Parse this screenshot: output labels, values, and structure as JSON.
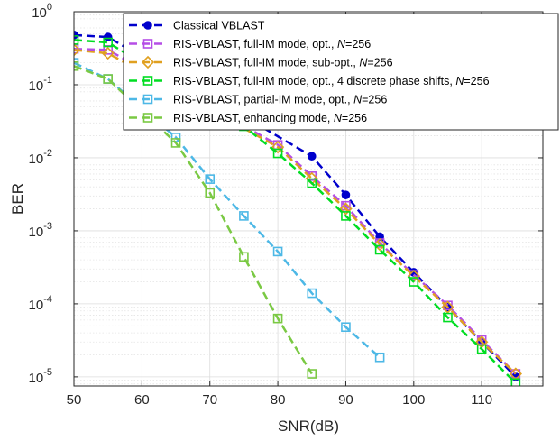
{
  "chart_data": {
    "type": "line",
    "xlabel": "SNR(dB)",
    "ylabel": "BER",
    "xlim": [
      50,
      119
    ],
    "ylim": [
      7.5e-06,
      1
    ],
    "yscale": "log",
    "xticks": [
      50,
      60,
      70,
      80,
      90,
      100,
      110
    ],
    "xtick_labels": [
      "50",
      "60",
      "70",
      "80",
      "90",
      "100",
      "110"
    ],
    "ytick_labels": [
      {
        "base": "10",
        "exp": "-5",
        "value": 1e-05
      },
      {
        "base": "10",
        "exp": "-4",
        "value": 0.0001
      },
      {
        "base": "10",
        "exp": "-3",
        "value": 0.001
      },
      {
        "base": "10",
        "exp": "-2",
        "value": 0.01
      },
      {
        "base": "10",
        "exp": "-1",
        "value": 0.1
      },
      {
        "base": "10",
        "exp": "0",
        "value": 1
      }
    ],
    "grid": true,
    "minor_grid": true,
    "legend_position": "top-right",
    "series": [
      {
        "name": "Classical VBLAST",
        "color": "#0000cc",
        "marker": "filled-circle",
        "x": [
          50,
          55,
          85,
          90,
          95,
          100,
          105,
          110,
          115
        ],
        "y": [
          0.48,
          0.45,
          0.0105,
          0.0031,
          0.00083,
          0.00027,
          9e-05,
          3e-05,
          1e-05
        ]
      },
      {
        "name": "RIS-VBLAST, full-IM mode, opt., N=256",
        "color": "#b54de6",
        "marker": "square",
        "x": [
          50,
          55,
          80,
          85,
          90,
          95,
          100,
          105,
          110,
          115
        ],
        "y": [
          0.31,
          0.3,
          0.015,
          0.0056,
          0.0022,
          0.00068,
          0.00025,
          9.5e-05,
          3.2e-05,
          1.1e-05
        ]
      },
      {
        "name": "RIS-VBLAST, full-IM mode, sub-opt., N=256",
        "color": "#e0a020",
        "marker": "diamond",
        "x": [
          50,
          55,
          80,
          85,
          90,
          95,
          100,
          105,
          110,
          115
        ],
        "y": [
          0.3,
          0.27,
          0.014,
          0.0052,
          0.002,
          0.00065,
          0.00024,
          9e-05,
          3e-05,
          1.1e-05
        ]
      },
      {
        "name": "RIS-VBLAST, full-IM mode, opt., 4 discrete phase shifts, N=256",
        "color": "#00dd22",
        "marker": "square",
        "x": [
          50,
          55,
          75,
          80,
          85,
          90,
          95,
          100,
          105,
          110,
          115
        ],
        "y": [
          0.41,
          0.38,
          0.027,
          0.0115,
          0.0045,
          0.0016,
          0.00055,
          0.0002,
          6.5e-05,
          2.4e-05,
          8.2e-06
        ]
      },
      {
        "name": "RIS-VBLAST, partial-IM mode, opt., N=256",
        "color": "#4db8e6",
        "marker": "square",
        "x": [
          50,
          55,
          65,
          70,
          75,
          80,
          85,
          90,
          95
        ],
        "y": [
          0.2,
          0.12,
          0.019,
          0.0051,
          0.0016,
          0.00052,
          0.00014,
          4.8e-05,
          1.85e-05
        ]
      },
      {
        "name": "RIS-VBLAST, enhancing mode, N=256",
        "color": "#7ac943",
        "marker": "square",
        "x": [
          50,
          55,
          65,
          70,
          75,
          80,
          85
        ],
        "y": [
          0.18,
          0.12,
          0.016,
          0.0033,
          0.00044,
          6.3e-05,
          1.1e-05
        ]
      }
    ]
  }
}
